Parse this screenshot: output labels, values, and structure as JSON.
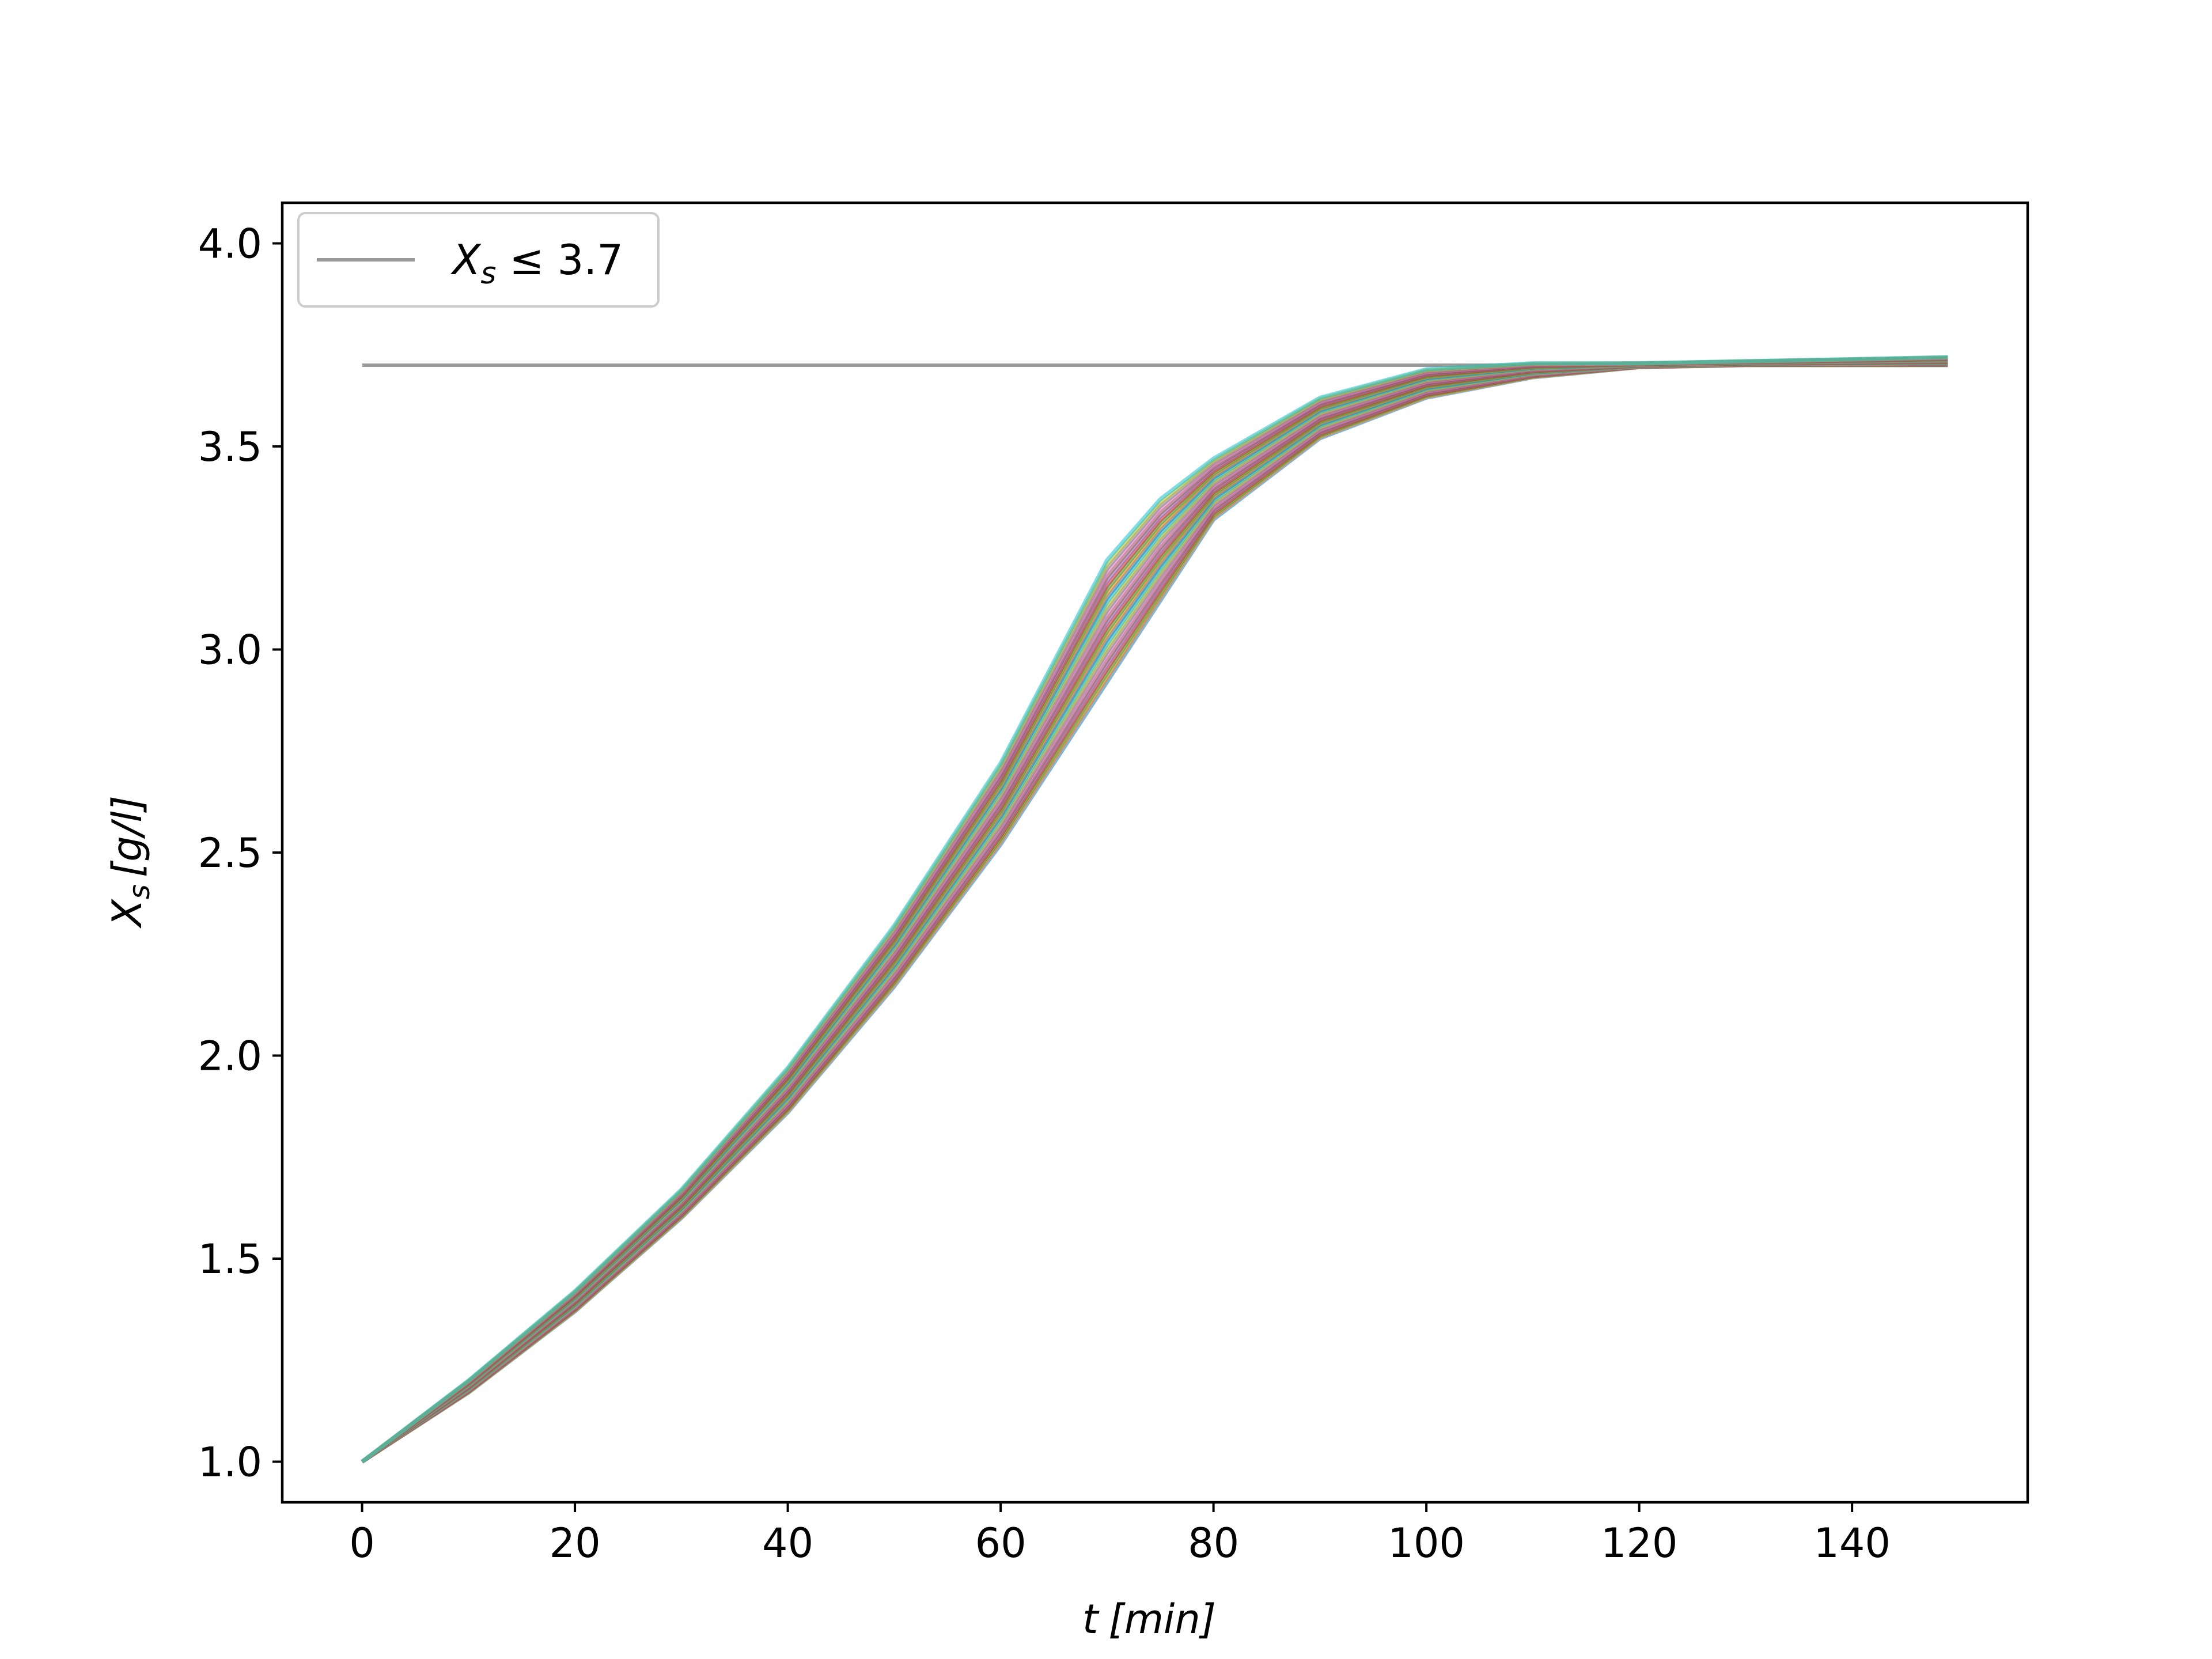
{
  "chart_data": {
    "type": "line",
    "title": "",
    "xlabel": "t [min]",
    "ylabel": "X_s [g/l]",
    "xlabel_parts": {
      "var": "t",
      "unit": "[min]"
    },
    "ylabel_parts": {
      "var": "X",
      "sub": "s",
      "unit": "[g/l]"
    },
    "xlim": [
      -7.5,
      156.5
    ],
    "ylim": [
      0.9,
      4.1
    ],
    "x_ticks": [
      0,
      20,
      40,
      60,
      80,
      100,
      120,
      140
    ],
    "y_ticks": [
      1.0,
      1.5,
      2.0,
      2.5,
      3.0,
      3.5,
      4.0
    ],
    "x_tick_labels": [
      "0",
      "20",
      "40",
      "60",
      "80",
      "100",
      "120",
      "140"
    ],
    "y_tick_labels": [
      "1.0",
      "1.5",
      "2.0",
      "2.5",
      "3.0",
      "3.5",
      "4.0"
    ],
    "grid": false,
    "legend": {
      "placement": "upper-left",
      "entries": [
        {
          "label_var": "X",
          "label_sub": "s",
          "label_rest": " ≤ 3.7",
          "color": "#999999"
        }
      ]
    },
    "constraint": {
      "y": 3.7,
      "x": [
        0,
        149
      ],
      "color": "#999999"
    },
    "trajectory_band": {
      "x": [
        0,
        10,
        20,
        30,
        40,
        50,
        60,
        70,
        75,
        80,
        90,
        100,
        110,
        120,
        130,
        140,
        149
      ],
      "lower": [
        1.0,
        1.17,
        1.37,
        1.6,
        1.86,
        2.17,
        2.52,
        2.92,
        3.12,
        3.32,
        3.52,
        3.62,
        3.67,
        3.695,
        3.7,
        3.7,
        3.7
      ],
      "upper": [
        1.0,
        1.2,
        1.42,
        1.67,
        1.97,
        2.32,
        2.72,
        3.22,
        3.37,
        3.47,
        3.62,
        3.69,
        3.705,
        3.705,
        3.71,
        3.715,
        3.72
      ],
      "n_trajectories": 30,
      "colors": [
        "#1f77b4",
        "#ff7f0e",
        "#2ca02c",
        "#d62728",
        "#9467bd",
        "#8c564b",
        "#e377c2",
        "#7f7f7f",
        "#bcbd22",
        "#17becf"
      ]
    }
  }
}
